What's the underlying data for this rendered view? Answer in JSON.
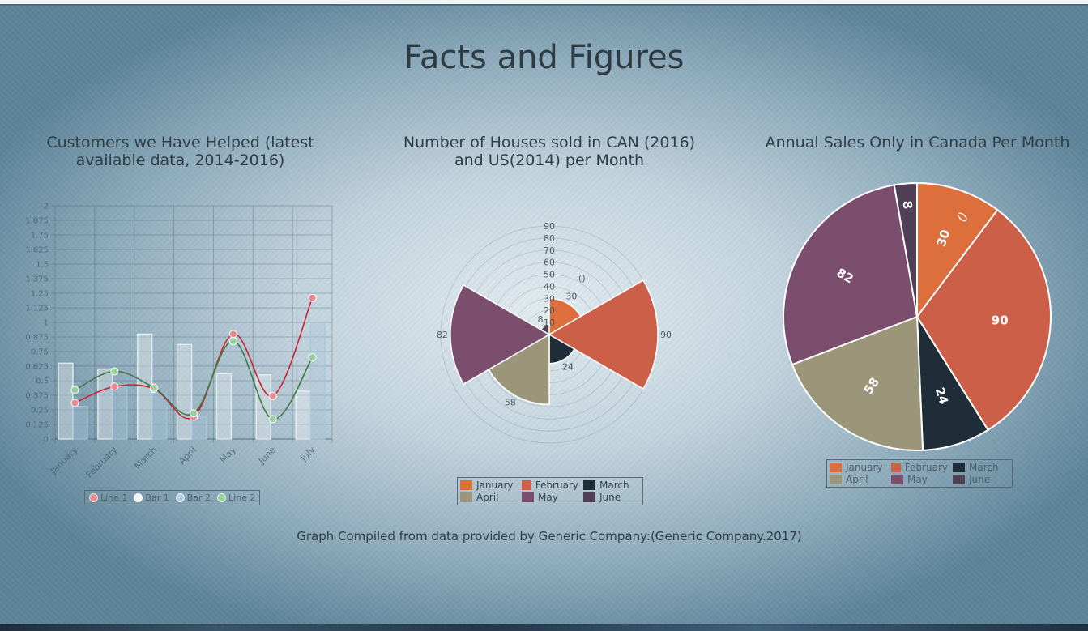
{
  "page": {
    "title": "Facts and Figures",
    "footer": "Graph Compiled from data provided by Generic Company:(Generic Company.2017)"
  },
  "chart_data": [
    {
      "type": "bar",
      "title": "Customers we Have Helped (latest available data, 2014-2016)",
      "categories": [
        "January",
        "February",
        "March",
        "April",
        "May",
        "June",
        "July"
      ],
      "ylim": [
        0,
        2
      ],
      "yticks": [
        "0",
        "0.125",
        "0.25",
        "0.375",
        "0.5",
        "0.625",
        "0.75",
        "0.875",
        "1",
        "1.125",
        "1.25",
        "1.375",
        "1.5",
        "1.625",
        "1.75",
        "1.875",
        "2"
      ],
      "grid": true,
      "legend_position": "bottom",
      "series": [
        {
          "name": "Line 1",
          "type": "line",
          "color": "#cc2233",
          "values": [
            0.31,
            0.45,
            0.43,
            0.19,
            0.9,
            0.37,
            1.21
          ]
        },
        {
          "name": "Bar 1",
          "type": "bar",
          "color": "#eef1f3",
          "values": [
            0.65,
            0.6,
            0.9,
            0.81,
            0.56,
            0.55,
            0.41
          ]
        },
        {
          "name": "Bar 2",
          "type": "bar",
          "color": "#a8c6d8",
          "values": [
            0.28,
            0.47,
            0.39,
            0.19,
            0.0,
            0.0,
            1.0
          ]
        },
        {
          "name": "Line 2",
          "type": "line",
          "color": "#3d7a45",
          "values": [
            0.42,
            0.58,
            0.44,
            0.22,
            0.84,
            0.17,
            0.7
          ]
        }
      ]
    },
    {
      "type": "polarArea",
      "title": "Number of Houses sold in CAN (2016) and US(2014) per Month",
      "categories": [
        "January",
        "February",
        "March",
        "April",
        "May",
        "June"
      ],
      "values": [
        30,
        90,
        24,
        58,
        82,
        8
      ],
      "colors": [
        "#dd6f3d",
        "#cc5f48",
        "#1e2d38",
        "#9b9679",
        "#7a4e6c",
        "#4f4055"
      ],
      "rticks": [
        "10",
        "20",
        "30",
        "40",
        "50",
        "60",
        "70",
        "80",
        "90"
      ],
      "annotations": [
        "()"
      ],
      "legend_position": "bottom"
    },
    {
      "type": "pie",
      "title": "Annual Sales Only in Canada Per Month",
      "categories": [
        "January",
        "February",
        "March",
        "April",
        "May",
        "June"
      ],
      "values": [
        30,
        90,
        24,
        58,
        82,
        8
      ],
      "colors": [
        "#dd6f3d",
        "#cc5f48",
        "#1e2d38",
        "#9b9679",
        "#7a4e6c",
        "#4f4055"
      ],
      "annotations": [
        "()"
      ],
      "legend_position": "bottom"
    }
  ]
}
